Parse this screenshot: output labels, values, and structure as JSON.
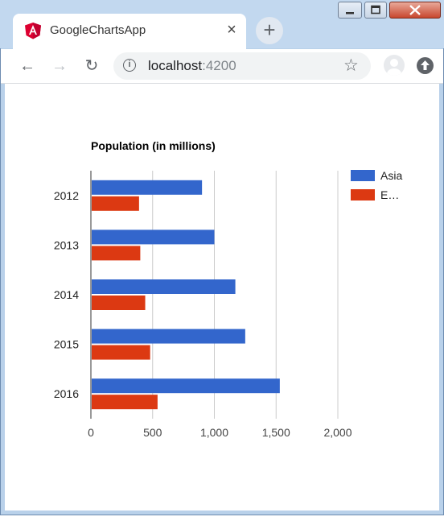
{
  "browser": {
    "tab": {
      "title": "GoogleChartsApp",
      "close_label": "×"
    },
    "new_tab_label": "+",
    "address": {
      "host": "localhost",
      "port": ":4200",
      "info_label": "i"
    },
    "nav": {
      "back": "←",
      "forward": "→",
      "reload": "↻"
    },
    "star": "☆"
  },
  "chart_data": {
    "type": "bar",
    "orientation": "horizontal",
    "title": "Population (in millions)",
    "categories": [
      "2012",
      "2013",
      "2014",
      "2015",
      "2016"
    ],
    "series": [
      {
        "name": "Asia",
        "legend_label": "Asia",
        "color": "#3366cc",
        "values": [
          900,
          1000,
          1170,
          1250,
          1530
        ]
      },
      {
        "name": "Europe",
        "legend_label": "E…",
        "color": "#dc3912",
        "values": [
          390,
          400,
          440,
          480,
          540
        ]
      }
    ],
    "xlim": [
      0,
      2000
    ],
    "x_ticks": [
      "0",
      "500",
      "1,000",
      "1,500",
      "2,000"
    ],
    "x_tick_values": [
      0,
      500,
      1000,
      1500,
      2000
    ],
    "grid": true,
    "legend_position": "right"
  }
}
